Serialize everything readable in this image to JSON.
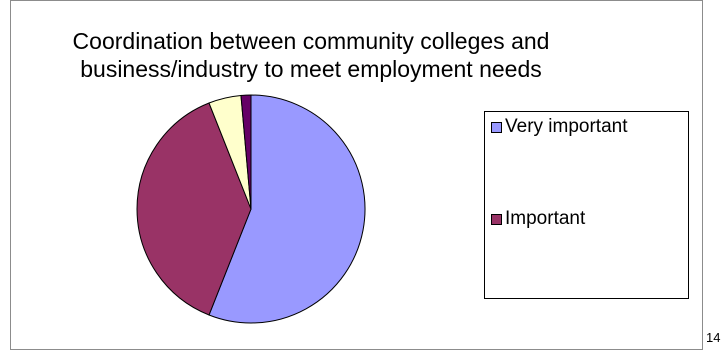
{
  "chart_data": {
    "type": "pie",
    "title": "Coordination between community colleges and business/industry to meet employment needs",
    "categories": [
      "Very important",
      "Important",
      "",
      ""
    ],
    "values": [
      56,
      38,
      4.6,
      1.4
    ],
    "colors": [
      "#9999ff",
      "#993366",
      "#ffffcc",
      "#660066"
    ],
    "legend_position": "right",
    "legend": [
      {
        "label": "Very important",
        "color": "#9999ff"
      },
      {
        "label": "Important",
        "color": "#993366"
      }
    ]
  },
  "page_number": "14"
}
